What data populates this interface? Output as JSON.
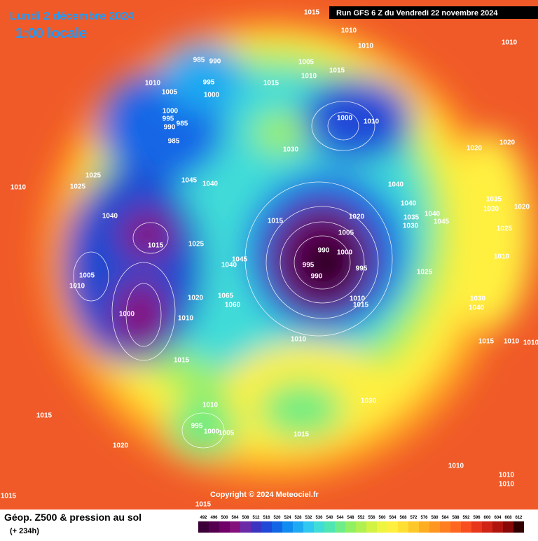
{
  "header": {
    "date": "Lundi 2 décembre 2024",
    "time": "1:00 locale",
    "run": "Run GFS 6 Z du Vendredi 22 novembre 2024"
  },
  "copyright": "Copyright © 2024 Meteociel.fr",
  "legend": {
    "title": "Géop. Z500 & pression au sol",
    "lead": "(+ 234h)",
    "scale": [
      492,
      496,
      500,
      504,
      508,
      512,
      516,
      520,
      524,
      528,
      532,
      536,
      540,
      544,
      548,
      552,
      556,
      560,
      564,
      568,
      572,
      576,
      580,
      584,
      588,
      592,
      596,
      600,
      604,
      608,
      612
    ],
    "colors": [
      "#3b0038",
      "#55004f",
      "#700068",
      "#84107e",
      "#6a2aa8",
      "#3a34c0",
      "#2048d8",
      "#1266e6",
      "#108cf0",
      "#1eaaf2",
      "#30c8f0",
      "#40dcd8",
      "#50e6b4",
      "#6eec88",
      "#90f062",
      "#b0f050",
      "#d2f244",
      "#eef440",
      "#fff040",
      "#ffe032",
      "#ffc82a",
      "#ffae22",
      "#ff9620",
      "#ff7e20",
      "#ff6622",
      "#f84e20",
      "#e8361a",
      "#d02414",
      "#b0140e",
      "#880808",
      "#300000"
    ]
  },
  "isobar_labels": [
    "1015",
    "1010",
    "1010",
    "1010",
    "985",
    "990",
    "995",
    "1000",
    "1010",
    "1005",
    "1005",
    "1010",
    "1015",
    "1015",
    "1000",
    "995",
    "990",
    "985",
    "985",
    "1000",
    "1010",
    "1030",
    "1020",
    "1020",
    "1025",
    "1025",
    "1010",
    "1045",
    "1040",
    "1040",
    "1040",
    "1035",
    "1030",
    "1020",
    "1040",
    "1015",
    "1020",
    "1005",
    "1035",
    "1040",
    "1045",
    "1030",
    "1025",
    "1015",
    "1025",
    "990",
    "1000",
    "995",
    "995",
    "990",
    "1010",
    "1025",
    "1005",
    "1010",
    "1045",
    "1040",
    "1065",
    "1060",
    "1020",
    "1010",
    "1015",
    "1030",
    "1040",
    "1000",
    "1010",
    "1010",
    "1015",
    "1010",
    "1010",
    "1015",
    "1030",
    "1010",
    "995",
    "1000",
    "1005",
    "1015",
    "1015",
    "1020",
    "1010",
    "1010",
    "1010",
    "1015",
    "1015"
  ]
}
